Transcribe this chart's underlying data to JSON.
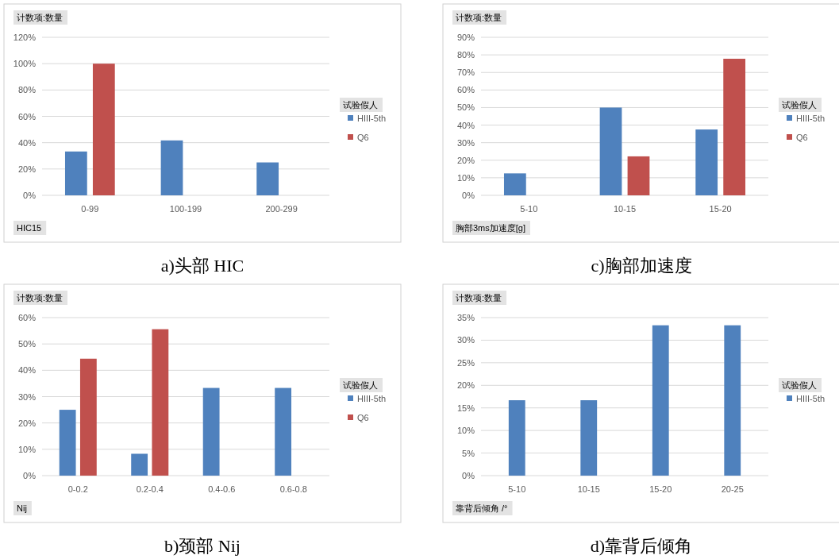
{
  "chart_data": [
    {
      "type": "bar",
      "title": "a)头部 HIC",
      "ylabel": "计数项:数量",
      "xlabel": "HIC15",
      "legend_title": "试验假人",
      "categories": [
        "0-99",
        "100-199",
        "200-299"
      ],
      "series": [
        {
          "name": "HIII-5th",
          "color": "#4f81bd",
          "values": [
            33.3,
            41.7,
            25
          ]
        },
        {
          "name": "Q6",
          "color": "#c0504d",
          "values": [
            100,
            null,
            null
          ]
        }
      ],
      "ylim": [
        0,
        120
      ],
      "yticks": [
        {
          "value": 0,
          "label": "0%"
        },
        {
          "value": 20,
          "label": "20%"
        },
        {
          "value": 40,
          "label": "40%"
        },
        {
          "value": 60,
          "label": "60%"
        },
        {
          "value": 80,
          "label": "80%"
        },
        {
          "value": 100,
          "label": "100%"
        },
        {
          "value": 120,
          "label": "120%"
        }
      ],
      "grid": "y",
      "legend": "right"
    },
    {
      "type": "bar",
      "title": "c)胸部加速度",
      "ylabel": "计数项:数量",
      "xlabel": "胸部3ms加速度[g]",
      "legend_title": "试验假人",
      "categories": [
        "5-10",
        "10-15",
        "15-20"
      ],
      "series": [
        {
          "name": "HIII-5th",
          "color": "#4f81bd",
          "values": [
            12.5,
            50,
            37.5
          ]
        },
        {
          "name": "Q6",
          "color": "#c0504d",
          "values": [
            null,
            22.2,
            77.8
          ]
        }
      ],
      "ylim": [
        0,
        90
      ],
      "yticks": [
        {
          "value": 0,
          "label": "0%"
        },
        {
          "value": 10,
          "label": "10%"
        },
        {
          "value": 20,
          "label": "20%"
        },
        {
          "value": 30,
          "label": "30%"
        },
        {
          "value": 40,
          "label": "40%"
        },
        {
          "value": 50,
          "label": "50%"
        },
        {
          "value": 60,
          "label": "60%"
        },
        {
          "value": 70,
          "label": "70%"
        },
        {
          "value": 80,
          "label": "80%"
        },
        {
          "value": 90,
          "label": "90%"
        }
      ],
      "grid": "y",
      "legend": "right"
    },
    {
      "type": "bar",
      "title": "b)颈部 Nij",
      "ylabel": "计数项:数量",
      "xlabel": "Nij",
      "legend_title": "试验假人",
      "categories": [
        "0-0.2",
        "0.2-0.4",
        "0.4-0.6",
        "0.6-0.8"
      ],
      "series": [
        {
          "name": "HIII-5th",
          "color": "#4f81bd",
          "values": [
            25,
            8.3,
            33.3,
            33.3
          ]
        },
        {
          "name": "Q6",
          "color": "#c0504d",
          "values": [
            44.4,
            55.6,
            null,
            null
          ]
        }
      ],
      "ylim": [
        0,
        60
      ],
      "yticks": [
        {
          "value": 0,
          "label": "0%"
        },
        {
          "value": 10,
          "label": "10%"
        },
        {
          "value": 20,
          "label": "20%"
        },
        {
          "value": 30,
          "label": "30%"
        },
        {
          "value": 40,
          "label": "40%"
        },
        {
          "value": 50,
          "label": "50%"
        },
        {
          "value": 60,
          "label": "60%"
        }
      ],
      "grid": "y",
      "legend": "right"
    },
    {
      "type": "bar",
      "title": "d)靠背后倾角",
      "ylabel": "计数项:数量",
      "xlabel": "靠背后倾角 /°",
      "legend_title": "试验假人",
      "categories": [
        "5-10",
        "10-15",
        "15-20",
        "20-25"
      ],
      "series": [
        {
          "name": "HIII-5th",
          "color": "#4f81bd",
          "values": [
            16.7,
            16.7,
            33.3,
            33.3
          ]
        }
      ],
      "ylim": [
        0,
        35
      ],
      "yticks": [
        {
          "value": 0,
          "label": "0%"
        },
        {
          "value": 5,
          "label": "5%"
        },
        {
          "value": 10,
          "label": "10%"
        },
        {
          "value": 15,
          "label": "15%"
        },
        {
          "value": 20,
          "label": "20%"
        },
        {
          "value": 25,
          "label": "25%"
        },
        {
          "value": 30,
          "label": "30%"
        },
        {
          "value": 35,
          "label": "35%"
        }
      ],
      "grid": "y",
      "legend": "right"
    }
  ]
}
